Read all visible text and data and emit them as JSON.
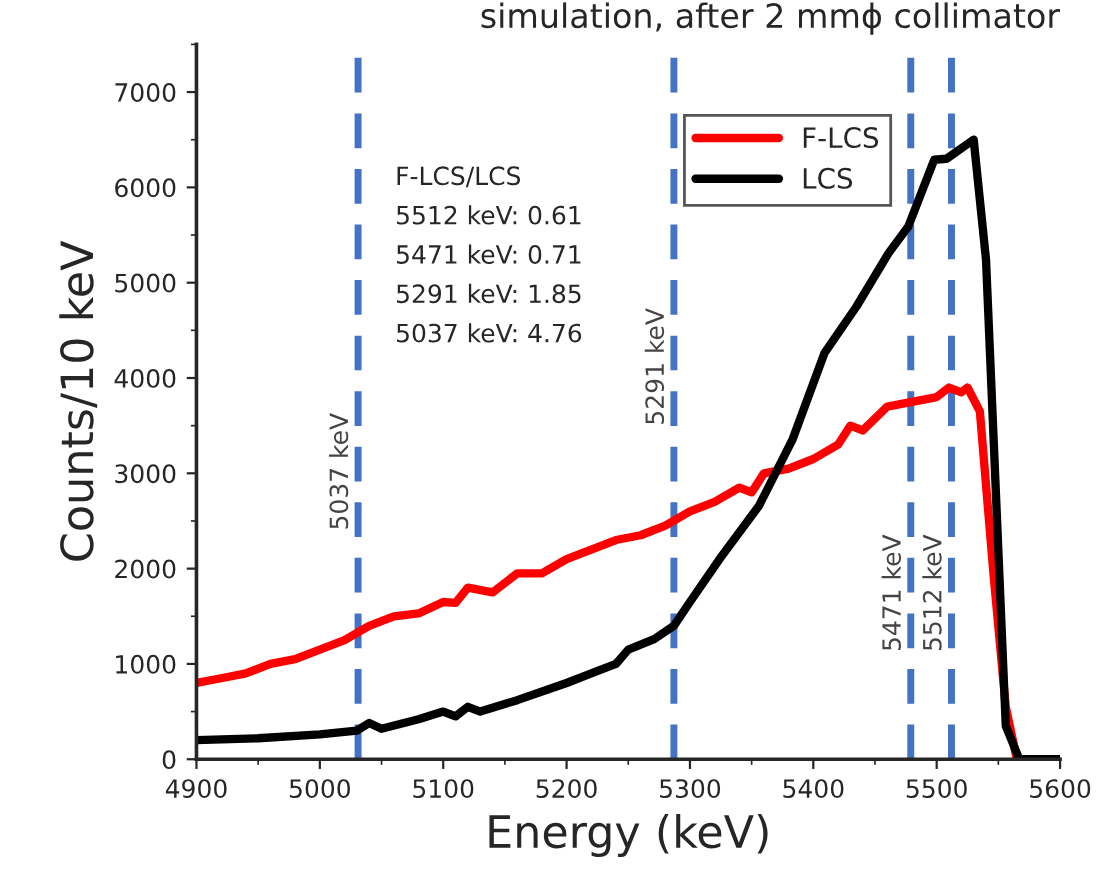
{
  "chart_data": {
    "type": "line",
    "title": "simulation, after 2 mmϕ collimator",
    "xlabel": "Energy (keV)",
    "ylabel": "Counts/10 keV",
    "xlim": [
      4900,
      5600
    ],
    "xticks": [
      4900,
      5000,
      5100,
      5200,
      5300,
      5400,
      5500,
      5600
    ],
    "ylim": [
      0,
      7500
    ],
    "yticks": [
      0,
      1000,
      2000,
      3000,
      4000,
      5000,
      6000,
      7000
    ],
    "grid": false,
    "legend": "top right",
    "marker": "none",
    "line_style": "solid",
    "series": [
      {
        "name": "F-LCS",
        "color": "#ff0000",
        "x": [
          4900,
          4920,
          4940,
          4960,
          4980,
          5000,
          5020,
          5040,
          5060,
          5080,
          5100,
          5110,
          5120,
          5140,
          5160,
          5180,
          5200,
          5220,
          5240,
          5260,
          5280,
          5300,
          5320,
          5340,
          5350,
          5360,
          5380,
          5400,
          5420,
          5430,
          5440,
          5460,
          5480,
          5500,
          5510,
          5520,
          5525,
          5535,
          5546,
          5556,
          5565,
          5600
        ],
        "values": [
          800,
          850,
          900,
          1000,
          1050,
          1150,
          1250,
          1400,
          1500,
          1530,
          1650,
          1640,
          1800,
          1750,
          1950,
          1950,
          2100,
          2200,
          2300,
          2350,
          2450,
          2600,
          2700,
          2850,
          2800,
          3000,
          3050,
          3150,
          3300,
          3500,
          3450,
          3700,
          3750,
          3800,
          3900,
          3850,
          3900,
          3650,
          1950,
          550,
          0,
          0
        ]
      },
      {
        "name": "LCS",
        "color": "#000000",
        "x": [
          4900,
          4950,
          5000,
          5030,
          5040,
          5050,
          5080,
          5100,
          5110,
          5120,
          5130,
          5160,
          5200,
          5220,
          5240,
          5250,
          5271,
          5287,
          5300,
          5324,
          5356,
          5383,
          5409,
          5435,
          5461,
          5477,
          5498,
          5508,
          5530,
          5540,
          5556,
          5567,
          5600
        ],
        "values": [
          200,
          220,
          260,
          300,
          380,
          320,
          420,
          500,
          450,
          550,
          500,
          620,
          800,
          900,
          1000,
          1150,
          1260,
          1400,
          1650,
          2100,
          2660,
          3350,
          4260,
          4750,
          5310,
          5590,
          6290,
          6300,
          6500,
          5240,
          350,
          0,
          0
        ]
      }
    ],
    "ref_lines": [
      {
        "axis": "x",
        "value": 5031,
        "label": "5037 keV",
        "color": "#4472c4",
        "line_style": "dashed"
      },
      {
        "axis": "x",
        "value": 5287,
        "label": "5291 keV",
        "color": "#4472c4",
        "line_style": "dashed"
      },
      {
        "axis": "x",
        "value": 5479,
        "label": "5471 keV",
        "color": "#4472c4",
        "line_style": "dashed"
      },
      {
        "axis": "x",
        "value": 5512,
        "label": "5512 keV",
        "color": "#4472c4",
        "line_style": "dashed"
      }
    ],
    "annotations": [
      "F-LCS/LCS",
      "5512 keV: 0.61",
      "5471 keV: 0.71",
      "5291 keV: 1.85",
      "5037 keV: 4.76"
    ]
  }
}
